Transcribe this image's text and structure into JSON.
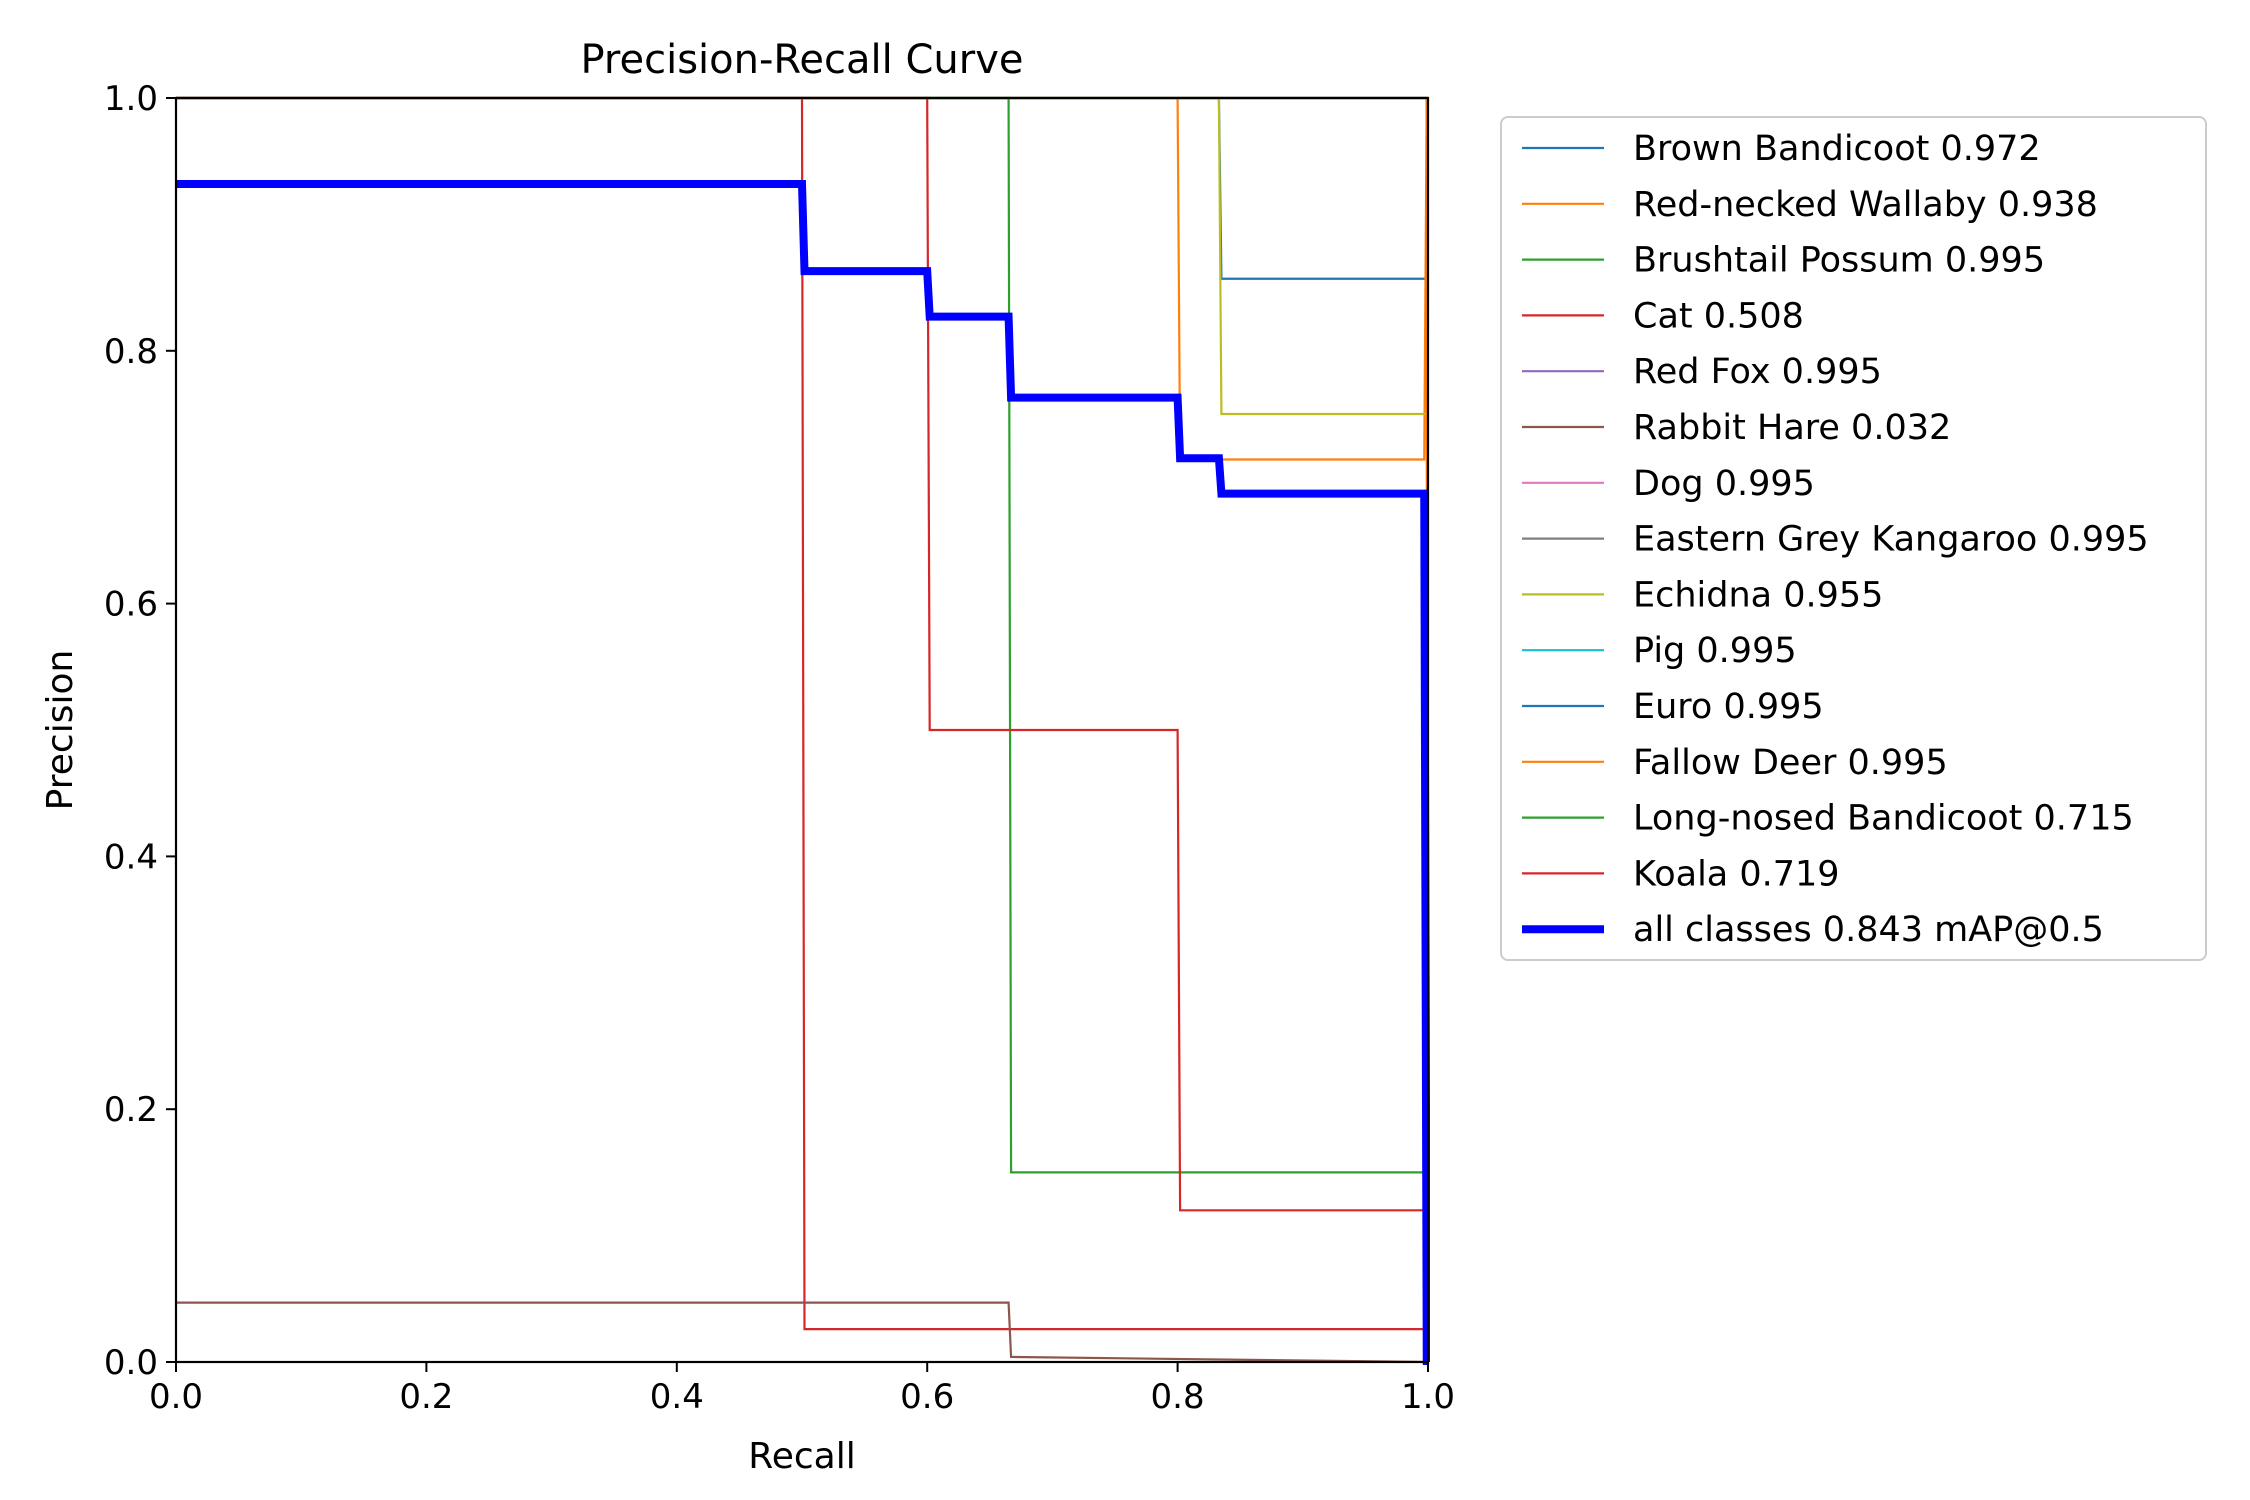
{
  "chart_data": {
    "type": "line",
    "title": "Precision-Recall Curve",
    "xlabel": "Recall",
    "ylabel": "Precision",
    "xlim": [
      0,
      1
    ],
    "ylim": [
      0,
      1
    ],
    "xticks": [
      "0.0",
      "0.2",
      "0.4",
      "0.6",
      "0.8",
      "1.0"
    ],
    "yticks": [
      "0.0",
      "0.2",
      "0.4",
      "0.6",
      "0.8",
      "1.0"
    ],
    "grid": false,
    "legend_position": "outside-right",
    "series": [
      {
        "name": "Brown Bandicoot 0.972",
        "color": "#1f77b4",
        "x": [
          0,
          0.833,
          0.835,
          0.997,
          0.999,
          1.0
        ],
        "y": [
          1,
          1,
          0.857,
          0.857,
          0.857,
          0
        ]
      },
      {
        "name": "Red-necked Wallaby 0.938",
        "color": "#ff7f0e",
        "x": [
          0,
          0.8,
          0.802,
          0.997,
          0.999,
          1.0
        ],
        "y": [
          1,
          1,
          0.714,
          0.714,
          1.0,
          0
        ]
      },
      {
        "name": "Brushtail Possum 0.995",
        "color": "#2ca02c",
        "x": [
          0,
          0.999,
          1.0
        ],
        "y": [
          1,
          1,
          0
        ]
      },
      {
        "name": "Cat 0.508",
        "color": "#d62728",
        "x": [
          0,
          0.5,
          0.502,
          0.998,
          1.0
        ],
        "y": [
          1,
          1,
          0.026,
          0.026,
          0
        ]
      },
      {
        "name": "Red Fox 0.995",
        "color": "#9467bd",
        "x": [
          0,
          0.999,
          1.0
        ],
        "y": [
          1,
          1,
          0
        ]
      },
      {
        "name": "Rabbit Hare 0.032",
        "color": "#8c564b",
        "x": [
          0,
          0.665,
          0.667,
          1.0
        ],
        "y": [
          0.047,
          0.047,
          0.004,
          0.0
        ]
      },
      {
        "name": "Dog 0.995",
        "color": "#e377c2",
        "x": [
          0,
          0.999,
          1.0
        ],
        "y": [
          1,
          1,
          0
        ]
      },
      {
        "name": "Eastern Grey Kangaroo 0.995",
        "color": "#7f7f7f",
        "x": [
          0,
          0.999,
          1.0
        ],
        "y": [
          1,
          1,
          0
        ]
      },
      {
        "name": "Echidna 0.955",
        "color": "#bcbd22",
        "x": [
          0,
          0.833,
          0.835,
          0.999,
          1.0
        ],
        "y": [
          1,
          1,
          0.75,
          0.75,
          0
        ]
      },
      {
        "name": "Pig 0.995",
        "color": "#17becf",
        "x": [
          0,
          0.999,
          1.0
        ],
        "y": [
          1,
          1,
          0
        ]
      },
      {
        "name": "Euro 0.995",
        "color": "#1f77b4",
        "x": [
          0,
          0.999,
          1.0
        ],
        "y": [
          1,
          1,
          0
        ]
      },
      {
        "name": "Fallow Deer 0.995",
        "color": "#ff7f0e",
        "x": [
          0,
          0.999,
          1.0
        ],
        "y": [
          1,
          1,
          0
        ]
      },
      {
        "name": "Long-nosed Bandicoot 0.715",
        "color": "#2ca02c",
        "x": [
          0,
          0.665,
          0.667,
          0.998,
          1.0
        ],
        "y": [
          1,
          1,
          0.15,
          0.15,
          0
        ]
      },
      {
        "name": "Koala 0.719",
        "color": "#d62728",
        "x": [
          0,
          0.6,
          0.602,
          0.8,
          0.802,
          0.998,
          1.0
        ],
        "y": [
          1,
          1,
          0.5,
          0.5,
          0.12,
          0.12,
          0
        ]
      },
      {
        "name": "all classes 0.843 mAP@0.5",
        "color": "#0000ff",
        "x": [
          0,
          0.5,
          0.502,
          0.6,
          0.602,
          0.665,
          0.667,
          0.8,
          0.802,
          0.833,
          0.835,
          0.997,
          0.999,
          1.0
        ],
        "y": [
          0.932,
          0.932,
          0.863,
          0.863,
          0.827,
          0.827,
          0.763,
          0.763,
          0.715,
          0.715,
          0.687,
          0.687,
          0.0,
          0.0
        ]
      }
    ]
  }
}
